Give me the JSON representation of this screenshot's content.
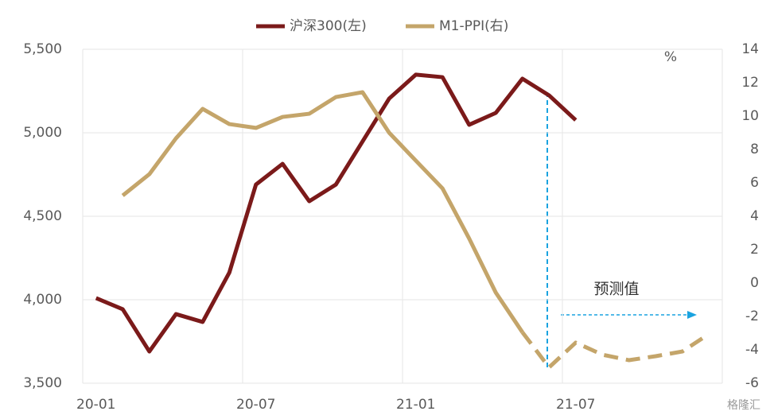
{
  "chart_data": {
    "type": "line",
    "categories": [
      "20-01",
      null,
      null,
      null,
      null,
      null,
      "20-07",
      null,
      null,
      null,
      null,
      null,
      "21-01",
      null,
      null,
      null,
      null,
      null,
      "21-07",
      null,
      null,
      null,
      null,
      null
    ],
    "series": [
      {
        "name": "沪深300(左)",
        "color": "#7b1a1a",
        "axis": "y",
        "values": [
          4010,
          3943,
          3690,
          3914,
          3867,
          4162,
          4690,
          4814,
          4590,
          4690,
          4948,
          5205,
          5348,
          5333,
          5048,
          5119,
          5324,
          5224,
          5076,
          null,
          null,
          null,
          null,
          null
        ]
      },
      {
        "name": "M1-PPI(右)",
        "color": "#c4a56a",
        "axis": "y2",
        "dashed_from": 16,
        "values": [
          null,
          5.24,
          6.52,
          8.67,
          10.43,
          9.52,
          9.29,
          9.95,
          10.14,
          11.14,
          11.43,
          9.0,
          7.33,
          5.67,
          2.67,
          -0.57,
          -2.95,
          -5.05,
          -3.57,
          -4.29,
          -4.62,
          -4.38,
          -4.1,
          -3.05
        ]
      }
    ],
    "ylim": [
      3500,
      5500
    ],
    "yticks": [
      {
        "value": 3500,
        "label": "3,500"
      },
      {
        "value": 4000,
        "label": "4,000"
      },
      {
        "value": 4500,
        "label": "4,500"
      },
      {
        "value": 5000,
        "label": "5,000"
      },
      {
        "value": 5500,
        "label": "5,500"
      }
    ],
    "y2lim": [
      -6,
      14
    ],
    "y2ticks": [
      -6,
      -4,
      -2,
      0,
      2,
      4,
      6,
      8,
      10,
      12,
      14
    ],
    "y2_unit": "%",
    "annotation": "预测值",
    "watermark": "格隆汇",
    "grid": true
  }
}
